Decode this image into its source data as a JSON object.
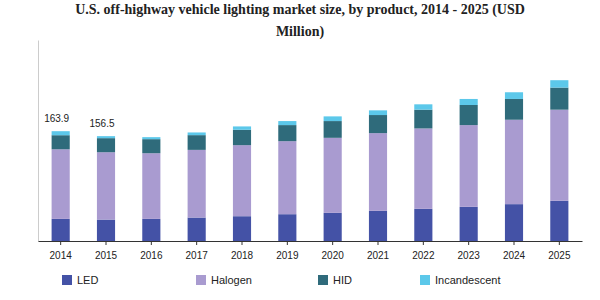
{
  "chart_data": {
    "type": "bar",
    "stacked": true,
    "title": "U.S. off-highway vehicle lighting market size, by product, 2014 - 2025 (USD Million)",
    "categories": [
      "2014",
      "2015",
      "2016",
      "2017",
      "2018",
      "2019",
      "2020",
      "2021",
      "2022",
      "2023",
      "2024",
      "2025"
    ],
    "series": [
      {
        "name": "LED",
        "color": "#4452a6",
        "values": [
          33,
          32,
          33,
          35,
          37,
          40,
          42,
          45,
          48,
          51,
          55,
          60
        ]
      },
      {
        "name": "Halogen",
        "color": "#a99bd0",
        "values": [
          103.9,
          100.5,
          98,
          101,
          106,
          109,
          112,
          116,
          120,
          122,
          126,
          136
        ]
      },
      {
        "name": "HID",
        "color": "#2f6b7b",
        "values": [
          21,
          21,
          21,
          22,
          23,
          24,
          25,
          27,
          28,
          30,
          31,
          33
        ]
      },
      {
        "name": "Incandescent",
        "color": "#5cc8ea",
        "values": [
          6,
          3,
          3,
          4,
          5,
          6,
          7,
          7,
          8,
          9,
          10,
          11
        ]
      }
    ],
    "ylim": [
      0,
      300
    ],
    "tick_labels": "x",
    "legend": "bottom",
    "annotations": [
      {
        "x": "2014",
        "y": 163.9,
        "text": "163.9"
      },
      {
        "x": "2015",
        "y": 156.5,
        "text": "156.5"
      }
    ]
  }
}
